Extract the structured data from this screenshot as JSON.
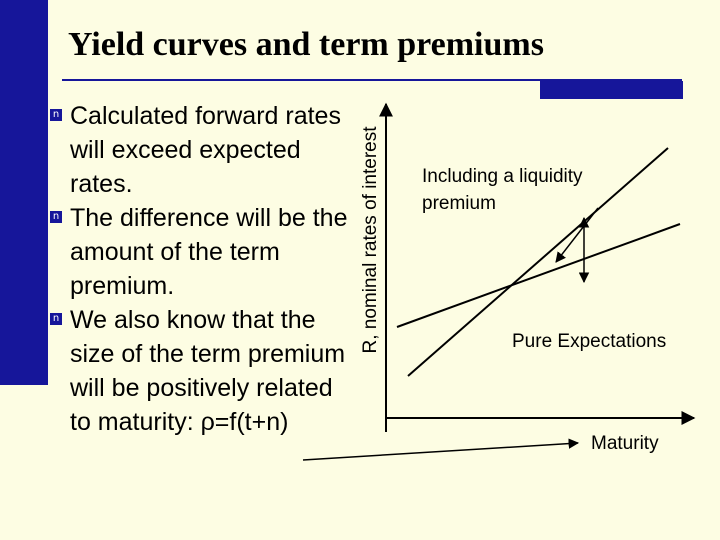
{
  "slide": {
    "title": "Yield curves and term premiums",
    "bullets": [
      "Calculated forward rates will exceed expected rates.",
      "The difference will be the amount of the term premium.",
      "We also know that the size of the term premium will be positively related to maturity: ρ=f(t+n)"
    ]
  },
  "diagram": {
    "y_axis_label": "R, nominal rates of interest",
    "x_axis_label": "Maturity",
    "curves": [
      {
        "label": "Including a liquidity premium"
      },
      {
        "label": "Pure Expectations"
      }
    ]
  },
  "colors": {
    "background": "#fdfde3",
    "accent": "#16169a",
    "ink": "#000000"
  },
  "icons": [
    "bullet-square-icon",
    "axis-arrow-icon",
    "double-arrow-icon"
  ]
}
